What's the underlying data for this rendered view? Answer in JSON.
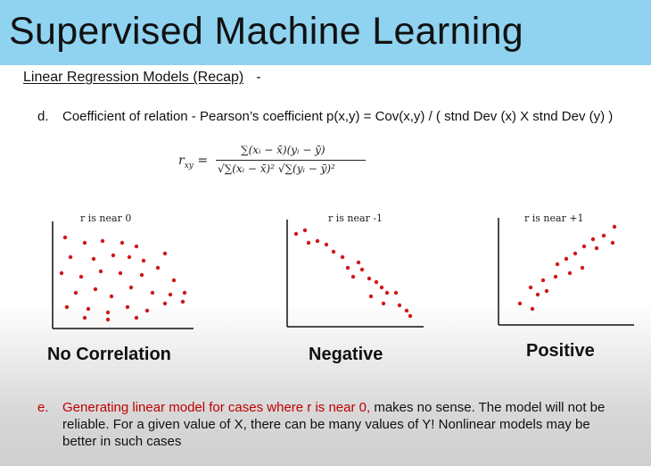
{
  "title": "Supervised Machine Learning",
  "subheading": "Linear Regression Models (Recap)",
  "subheading_suffix": "-",
  "item_d": {
    "marker": "d.",
    "text": "Coefficient of relation - Pearson’s coefficient p(x,y) = Cov(x,y) / ( stnd Dev (x) X stnd Dev (y) )"
  },
  "formula": {
    "lhs": "r_xy =",
    "numerator": "∑(xᵢ − x̄)(yᵢ − ȳ)",
    "denominator": "√∑(xᵢ − x̄)² √∑(yᵢ − ȳ)²"
  },
  "plots": [
    {
      "label": "r is near 0",
      "caption": "No Correlation",
      "kind": "none"
    },
    {
      "label": "r is near -1",
      "caption": "Negative",
      "kind": "negative"
    },
    {
      "label": "r is near +1",
      "caption": "Positive",
      "kind": "positive"
    }
  ],
  "item_e": {
    "marker": "e.",
    "highlight": "Generating linear model for cases where r is near 0,",
    "rest": " makes no sense. The model will not be reliable. For a given value of X, there can be many values of Y! Nonlinear models may be better in such cases"
  },
  "colors": {
    "title_bar": "#8fd3f0",
    "dot": "#d01818",
    "highlight": "#c00000"
  }
}
